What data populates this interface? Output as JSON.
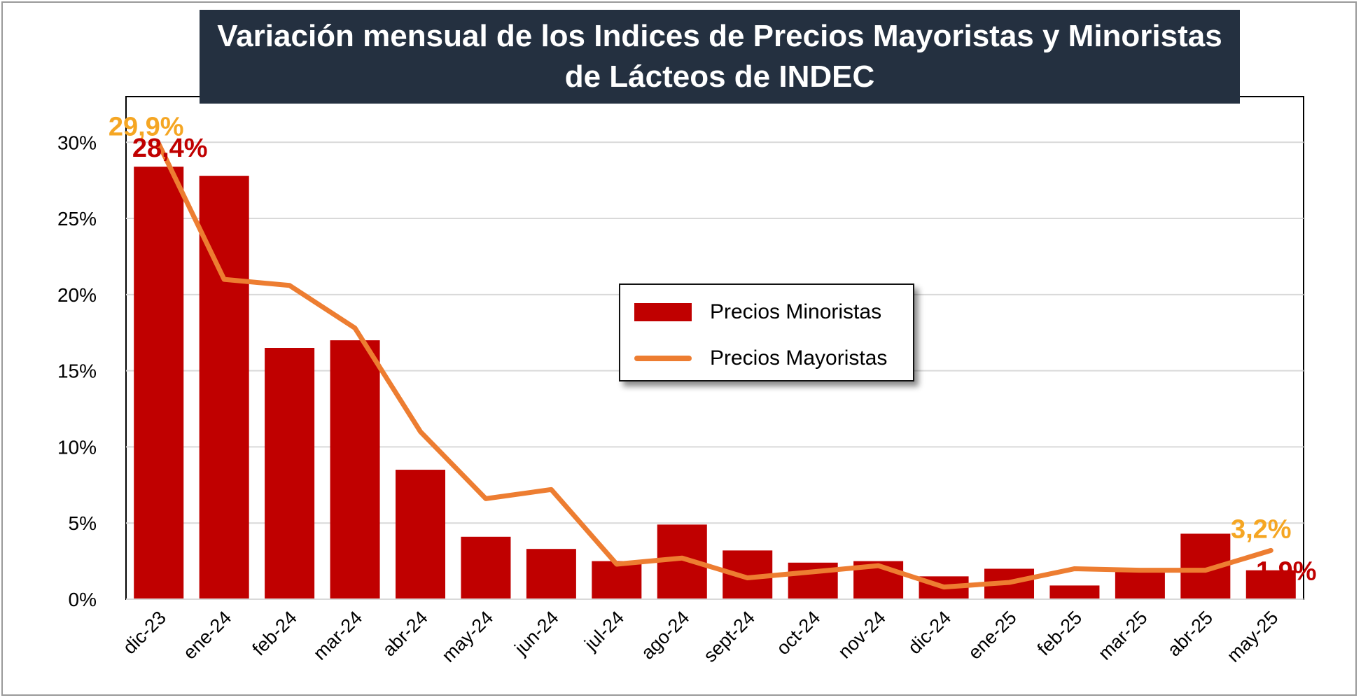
{
  "title": "Variación mensual de los Indices de Precios Mayoristas y Minoristas de Lácteos de INDEC",
  "colors": {
    "title_bg": "#243040",
    "minoristas": "#c00000",
    "mayoristas": "#ed7d31",
    "grid": "#d9d9d9",
    "label_minoristas": "#c00000",
    "label_mayoristas": "#f5a623"
  },
  "chart_data": {
    "type": "bar",
    "title": "Variación mensual de los Indices de Precios Mayoristas y Minoristas de Lácteos de INDEC",
    "categories": [
      "dic-23",
      "ene-24",
      "feb-24",
      "mar-24",
      "abr-24",
      "may-24",
      "jun-24",
      "jul-24",
      "ago-24",
      "sept-24",
      "oct-24",
      "nov-24",
      "dic-24",
      "ene-25",
      "feb-25",
      "mar-25",
      "abr-25",
      "may-25"
    ],
    "series": [
      {
        "name": "Precios Minoristas",
        "type": "bar",
        "values": [
          28.4,
          27.8,
          16.5,
          17.0,
          8.5,
          4.1,
          3.3,
          2.5,
          4.9,
          3.2,
          2.4,
          2.5,
          1.5,
          2.0,
          0.9,
          1.8,
          4.3,
          1.9
        ]
      },
      {
        "name": "Precios Mayoristas",
        "type": "line",
        "values": [
          29.9,
          21.0,
          20.6,
          17.8,
          11.0,
          6.6,
          7.2,
          2.3,
          2.7,
          1.4,
          1.8,
          2.2,
          0.8,
          1.1,
          2.0,
          1.9,
          1.9,
          3.2
        ]
      }
    ],
    "yticks": [
      "0%",
      "5%",
      "10%",
      "15%",
      "20%",
      "25%",
      "30%"
    ],
    "ylim": [
      0,
      33
    ],
    "grid": true,
    "legend_position": "center",
    "data_labels": [
      {
        "series": "Precios Mayoristas",
        "category": "dic-23",
        "text": "29,9%"
      },
      {
        "series": "Precios Minoristas",
        "category": "dic-23",
        "text": "28,4%"
      },
      {
        "series": "Precios Mayoristas",
        "category": "may-25",
        "text": "3,2%"
      },
      {
        "series": "Precios Minoristas",
        "category": "may-25",
        "text": "1,9%"
      }
    ]
  }
}
